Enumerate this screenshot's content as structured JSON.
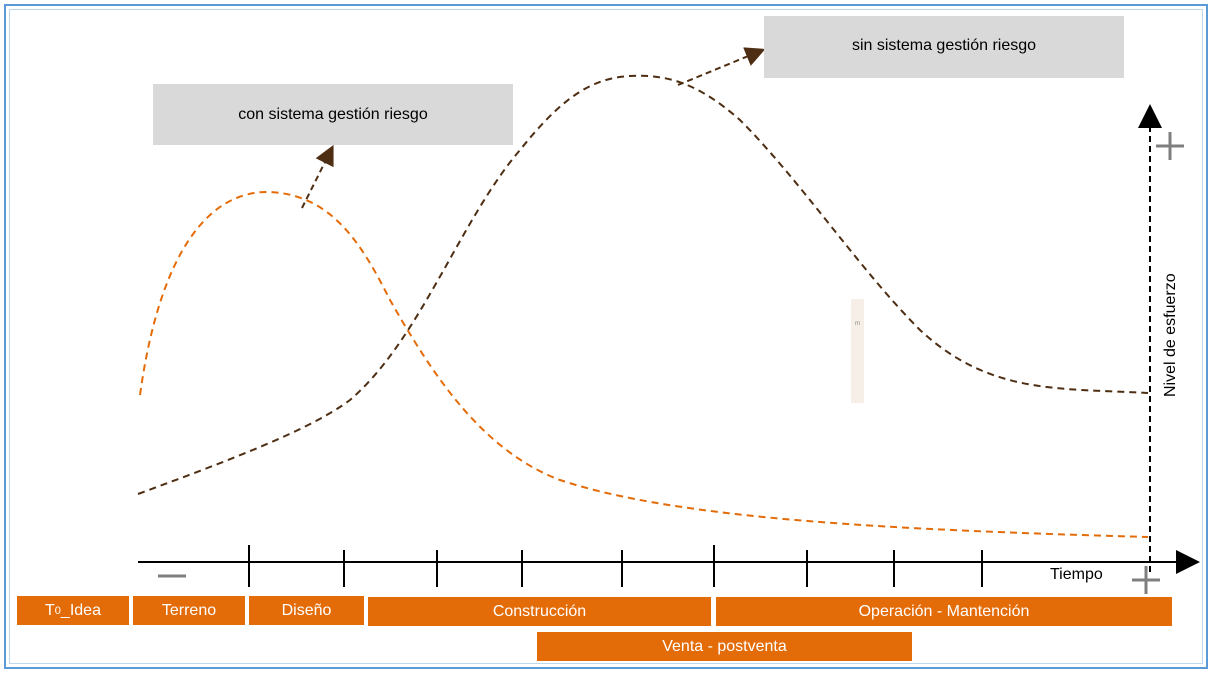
{
  "callouts": {
    "with_system": "con sistema gestión riesgo",
    "without_system": "sin sistema gestión riesgo"
  },
  "axes": {
    "x_label": "Tiempo",
    "y_label": "Nivel de esfuerzo",
    "minus_symbol": "—",
    "plus_symbol": "+"
  },
  "phases": {
    "t0_main": "T",
    "t0_sub": "0",
    "t0_rest": "_Idea",
    "terreno": "Terreno",
    "diseno": "Diseño",
    "construccion": "Construcción",
    "operacion": "Operación - Mantención",
    "venta": "Venta - postventa"
  },
  "small_note": "m",
  "colors": {
    "orange_curve": "#e36c09",
    "brown_curve": "#4e2e13",
    "phase_fill": "#e36c09",
    "callout_fill": "#d9d9d9"
  }
}
